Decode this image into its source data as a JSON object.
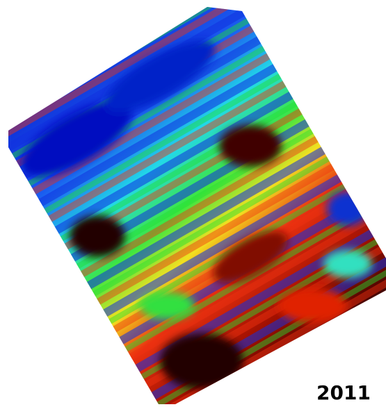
{
  "label": "2011"
}
